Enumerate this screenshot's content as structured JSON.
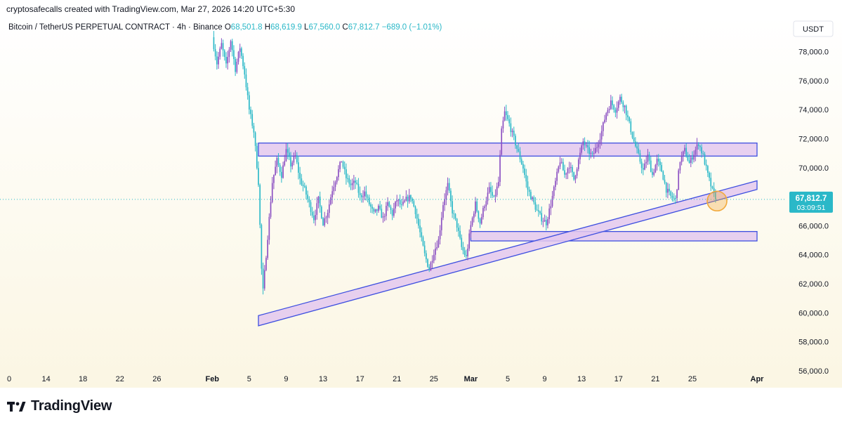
{
  "header": {
    "attribution": "cryptosafecalls created with TradingView.com, Mar 27, 2026 14:20 UTC+5:30"
  },
  "brand": {
    "name": "TradingView",
    "logo_icon": "tradingview-logo-icon"
  },
  "colors": {
    "up": "#8b4fc2",
    "down": "#2ab8c8",
    "zone_fill": "#e3c8ef",
    "zone_stroke": "#3d4fe0",
    "price_label_bg": "#2ab8c8",
    "bg_top": "#ffffff",
    "bg_bottom": "#fbf6e3",
    "highlight": "#f2a93b"
  },
  "chart_data": {
    "type": "candlestick",
    "title": "Bitcoin / TetherUS PERPETUAL CONTRACT · 4h · Binance",
    "legend": {
      "o_label": "O",
      "o": "68,501.8",
      "h_label": "H",
      "h": "68,619.9",
      "l_label": "L",
      "l": "67,560.0",
      "c_label": "C",
      "c": "67,812.7",
      "change": "−689.0 (−1.01%)"
    },
    "currency": "USDT",
    "last_price": "67,812.7",
    "countdown": "03:09:51",
    "x_start": "2026-01-10",
    "x_end": "2026-04-01",
    "ylim": [
      55800,
      80400
    ],
    "y_ticks": [
      56000,
      58000,
      60000,
      62000,
      64000,
      66000,
      68000,
      70000,
      72000,
      74000,
      76000,
      78000
    ],
    "y_tick_labels": [
      "56,000.0",
      "58,000.0",
      "60,000.0",
      "62,000.0",
      "64,000.0",
      "66,000.0",
      "68,000.0",
      "70,000.0",
      "72,000.0",
      "74,000.0",
      "76,000.0",
      "78,000.0"
    ],
    "x_ticks": [
      {
        "date": "2026-01-10",
        "label": "0"
      },
      {
        "date": "2026-01-14",
        "label": "14"
      },
      {
        "date": "2026-01-18",
        "label": "18"
      },
      {
        "date": "2026-01-22",
        "label": "22"
      },
      {
        "date": "2026-01-26",
        "label": "26"
      },
      {
        "date": "2026-02-01",
        "label": "Feb"
      },
      {
        "date": "2026-02-05",
        "label": "5"
      },
      {
        "date": "2026-02-09",
        "label": "9"
      },
      {
        "date": "2026-02-13",
        "label": "13"
      },
      {
        "date": "2026-02-17",
        "label": "17"
      },
      {
        "date": "2026-02-21",
        "label": "21"
      },
      {
        "date": "2026-02-25",
        "label": "25"
      },
      {
        "date": "2026-03-01",
        "label": "Mar"
      },
      {
        "date": "2026-03-05",
        "label": "5"
      },
      {
        "date": "2026-03-09",
        "label": "9"
      },
      {
        "date": "2026-03-13",
        "label": "13"
      },
      {
        "date": "2026-03-17",
        "label": "17"
      },
      {
        "date": "2026-03-21",
        "label": "21"
      },
      {
        "date": "2026-03-25",
        "label": "25"
      },
      {
        "date": "2026-04-01",
        "label": "Apr"
      }
    ],
    "price_path": [
      {
        "date": "2026-02-01 00:00",
        "price": 79000
      },
      {
        "date": "2026-02-01 12:00",
        "price": 77200
      },
      {
        "date": "2026-02-02 00:00",
        "price": 78500
      },
      {
        "date": "2026-02-02 12:00",
        "price": 77000
      },
      {
        "date": "2026-02-03 00:00",
        "price": 78800
      },
      {
        "date": "2026-02-03 12:00",
        "price": 76800
      },
      {
        "date": "2026-02-04 00:00",
        "price": 78300
      },
      {
        "date": "2026-02-04 12:00",
        "price": 76500
      },
      {
        "date": "2026-02-05 00:00",
        "price": 74000
      },
      {
        "date": "2026-02-05 12:00",
        "price": 72500
      },
      {
        "date": "2026-02-06 00:00",
        "price": 69000
      },
      {
        "date": "2026-02-06 08:00",
        "price": 63000
      },
      {
        "date": "2026-02-06 12:00",
        "price": 61500
      },
      {
        "date": "2026-02-06 20:00",
        "price": 64000
      },
      {
        "date": "2026-02-07 04:00",
        "price": 66500
      },
      {
        "date": "2026-02-07 12:00",
        "price": 69000
      },
      {
        "date": "2026-02-08 00:00",
        "price": 70500
      },
      {
        "date": "2026-02-08 12:00",
        "price": 69500
      },
      {
        "date": "2026-02-09 00:00",
        "price": 71200
      },
      {
        "date": "2026-02-09 12:00",
        "price": 70200
      },
      {
        "date": "2026-02-10 00:00",
        "price": 70800
      },
      {
        "date": "2026-02-10 12:00",
        "price": 69200
      },
      {
        "date": "2026-02-11 00:00",
        "price": 68500
      },
      {
        "date": "2026-02-11 12:00",
        "price": 67500
      },
      {
        "date": "2026-02-12 00:00",
        "price": 66500
      },
      {
        "date": "2026-02-12 12:00",
        "price": 67800
      },
      {
        "date": "2026-02-13 00:00",
        "price": 66200
      },
      {
        "date": "2026-02-13 12:00",
        "price": 67000
      },
      {
        "date": "2026-02-14 00:00",
        "price": 68500
      },
      {
        "date": "2026-02-14 12:00",
        "price": 69500
      },
      {
        "date": "2026-02-15 00:00",
        "price": 70500
      },
      {
        "date": "2026-02-15 12:00",
        "price": 69300
      },
      {
        "date": "2026-02-16 00:00",
        "price": 68800
      },
      {
        "date": "2026-02-16 12:00",
        "price": 69000
      },
      {
        "date": "2026-02-17 00:00",
        "price": 68000
      },
      {
        "date": "2026-02-17 12:00",
        "price": 68300
      },
      {
        "date": "2026-02-18 00:00",
        "price": 67500
      },
      {
        "date": "2026-02-18 12:00",
        "price": 66800
      },
      {
        "date": "2026-02-19 00:00",
        "price": 67200
      },
      {
        "date": "2026-02-19 12:00",
        "price": 66500
      },
      {
        "date": "2026-02-20 00:00",
        "price": 67500
      },
      {
        "date": "2026-02-20 12:00",
        "price": 66800
      },
      {
        "date": "2026-02-21 00:00",
        "price": 67800
      },
      {
        "date": "2026-02-21 12:00",
        "price": 67300
      },
      {
        "date": "2026-02-22 00:00",
        "price": 67800
      },
      {
        "date": "2026-02-22 12:00",
        "price": 68000
      },
      {
        "date": "2026-02-23 00:00",
        "price": 67000
      },
      {
        "date": "2026-02-23 12:00",
        "price": 65500
      },
      {
        "date": "2026-02-24 00:00",
        "price": 64000
      },
      {
        "date": "2026-02-24 12:00",
        "price": 63000
      },
      {
        "date": "2026-02-25 00:00",
        "price": 64200
      },
      {
        "date": "2026-02-25 12:00",
        "price": 65000
      },
      {
        "date": "2026-02-26 00:00",
        "price": 67500
      },
      {
        "date": "2026-02-26 12:00",
        "price": 68800
      },
      {
        "date": "2026-02-27 00:00",
        "price": 67000
      },
      {
        "date": "2026-02-27 12:00",
        "price": 66000
      },
      {
        "date": "2026-02-28 00:00",
        "price": 64500
      },
      {
        "date": "2026-02-28 12:00",
        "price": 63800
      },
      {
        "date": "2026-03-01 00:00",
        "price": 66000
      },
      {
        "date": "2026-03-01 12:00",
        "price": 67500
      },
      {
        "date": "2026-03-02 00:00",
        "price": 66200
      },
      {
        "date": "2026-03-02 12:00",
        "price": 67500
      },
      {
        "date": "2026-03-03 00:00",
        "price": 68500
      },
      {
        "date": "2026-03-03 12:00",
        "price": 67800
      },
      {
        "date": "2026-03-04 00:00",
        "price": 69000
      },
      {
        "date": "2026-03-04 08:00",
        "price": 72500
      },
      {
        "date": "2026-03-04 16:00",
        "price": 73800
      },
      {
        "date": "2026-03-05 04:00",
        "price": 73000
      },
      {
        "date": "2026-03-05 16:00",
        "price": 72000
      },
      {
        "date": "2026-03-06 04:00",
        "price": 71000
      },
      {
        "date": "2026-03-06 16:00",
        "price": 70000
      },
      {
        "date": "2026-03-07 04:00",
        "price": 68500
      },
      {
        "date": "2026-03-07 16:00",
        "price": 67800
      },
      {
        "date": "2026-03-08 04:00",
        "price": 67000
      },
      {
        "date": "2026-03-08 16:00",
        "price": 66500
      },
      {
        "date": "2026-03-09 04:00",
        "price": 66200
      },
      {
        "date": "2026-03-09 16:00",
        "price": 67500
      },
      {
        "date": "2026-03-10 04:00",
        "price": 69000
      },
      {
        "date": "2026-03-10 16:00",
        "price": 70500
      },
      {
        "date": "2026-03-11 04:00",
        "price": 69500
      },
      {
        "date": "2026-03-11 16:00",
        "price": 70200
      },
      {
        "date": "2026-03-12 04:00",
        "price": 69200
      },
      {
        "date": "2026-03-12 16:00",
        "price": 70500
      },
      {
        "date": "2026-03-13 04:00",
        "price": 71800
      },
      {
        "date": "2026-03-13 16:00",
        "price": 71200
      },
      {
        "date": "2026-03-14 04:00",
        "price": 70800
      },
      {
        "date": "2026-03-14 16:00",
        "price": 71500
      },
      {
        "date": "2026-03-15 04:00",
        "price": 72500
      },
      {
        "date": "2026-03-15 16:00",
        "price": 73800
      },
      {
        "date": "2026-03-16 04:00",
        "price": 74500
      },
      {
        "date": "2026-03-16 16:00",
        "price": 74000
      },
      {
        "date": "2026-03-17 04:00",
        "price": 74800
      },
      {
        "date": "2026-03-17 16:00",
        "price": 74200
      },
      {
        "date": "2026-03-18 04:00",
        "price": 73000
      },
      {
        "date": "2026-03-18 16:00",
        "price": 71800
      },
      {
        "date": "2026-03-19 04:00",
        "price": 70800
      },
      {
        "date": "2026-03-19 16:00",
        "price": 69800
      },
      {
        "date": "2026-03-20 04:00",
        "price": 70800
      },
      {
        "date": "2026-03-20 16:00",
        "price": 69500
      },
      {
        "date": "2026-03-21 04:00",
        "price": 70500
      },
      {
        "date": "2026-03-21 16:00",
        "price": 69800
      },
      {
        "date": "2026-03-22 04:00",
        "price": 68500
      },
      {
        "date": "2026-03-22 16:00",
        "price": 68000
      },
      {
        "date": "2026-03-23 04:00",
        "price": 67800
      },
      {
        "date": "2026-03-23 16:00",
        "price": 70500
      },
      {
        "date": "2026-03-24 04:00",
        "price": 71200
      },
      {
        "date": "2026-03-24 16:00",
        "price": 70300
      },
      {
        "date": "2026-03-25 04:00",
        "price": 71000
      },
      {
        "date": "2026-03-25 16:00",
        "price": 71700
      },
      {
        "date": "2026-03-26 04:00",
        "price": 70800
      },
      {
        "date": "2026-03-26 16:00",
        "price": 69500
      },
      {
        "date": "2026-03-27 04:00",
        "price": 68400
      },
      {
        "date": "2026-03-27 12:00",
        "price": 67812.7
      }
    ],
    "annotations": [
      {
        "kind": "zone",
        "label": "resistance-zone",
        "x_from": "2026-02-06",
        "x_to": "2026-04-01",
        "y_low": 70800,
        "y_high": 71700
      },
      {
        "kind": "zone",
        "label": "support-zone",
        "x_from": "2026-03-01",
        "x_to": "2026-04-01",
        "y_low": 64950,
        "y_high": 65600
      },
      {
        "kind": "channel",
        "label": "rising-trendline",
        "x_from": "2026-02-06",
        "x_to": "2026-04-01",
        "y_from_low": 59100,
        "y_from_high": 59800,
        "y_to_low": 68500,
        "y_to_high": 69100
      },
      {
        "kind": "circle",
        "label": "touch-highlight",
        "x": "2026-03-27 16:00",
        "y": 67700
      }
    ]
  }
}
